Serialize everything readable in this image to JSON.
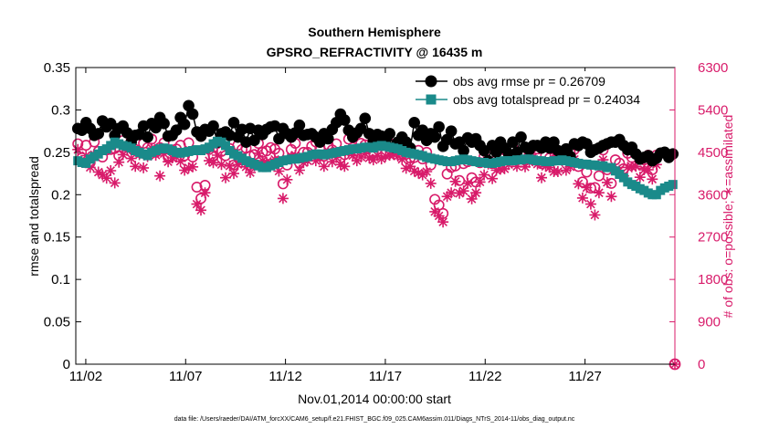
{
  "chart_data": {
    "type": "line",
    "title": "Southern Hemisphere",
    "subtitle": "GPSRO_REFRACTIVITY @ 16435 m",
    "xlabel": "Nov.01,2014 00:00:00 start",
    "ylabel": "rmse and totalspread",
    "ylabel_right": "# of obs: o=possible; ∗=assimilated",
    "footer": "data file: /Users/raeder/DAI/ATM_forcXX/CAM6_setup/f.e21.FHIST_BGC.f09_025.CAM6assim.011/Diags_NTrS_2014-11/obs_diag_output.nc",
    "xlim": [
      0.5,
      30.5
    ],
    "x_ticks": [
      1,
      6,
      11,
      16,
      21,
      26
    ],
    "x_tick_labels": [
      "11/02",
      "11/07",
      "11/12",
      "11/17",
      "11/22",
      "11/27"
    ],
    "ylim": [
      0,
      0.35
    ],
    "y_ticks": [
      "0",
      "0.05",
      "0.1",
      "0.15",
      "0.2",
      "0.25",
      "0.3",
      "0.35"
    ],
    "ylim_right": [
      0,
      6300
    ],
    "y_ticks_right": [
      "0",
      "900",
      "1800",
      "2700",
      "3600",
      "4500",
      "5400",
      "6300"
    ],
    "legend_position": "top-right",
    "colors": {
      "rmse": "#000000",
      "spread": "#1a8a8a",
      "obs": "#d81b6a"
    },
    "series": [
      {
        "name": "obs avg rmse",
        "legend": "obs avg rmse pr = 0.26709",
        "values": [
          0.278,
          0.276,
          0.285,
          0.278,
          0.27,
          0.272,
          0.287,
          0.28,
          0.284,
          0.27,
          0.278,
          0.281,
          0.273,
          0.262,
          0.27,
          0.271,
          0.281,
          0.268,
          0.284,
          0.279,
          0.291,
          0.284,
          0.269,
          0.27,
          0.276,
          0.291,
          0.283,
          0.305,
          0.295,
          0.274,
          0.269,
          0.277,
          0.275,
          0.281,
          0.262,
          0.272,
          0.274,
          0.27,
          0.285,
          0.268,
          0.277,
          0.262,
          0.278,
          0.264,
          0.276,
          0.271,
          0.277,
          0.28,
          0.281,
          0.266,
          0.278,
          0.272,
          0.268,
          0.273,
          0.282,
          0.27,
          0.271,
          0.272,
          0.268,
          0.262,
          0.272,
          0.266,
          0.277,
          0.285,
          0.295,
          0.288,
          0.276,
          0.268,
          0.273,
          0.278,
          0.29,
          0.272,
          0.263,
          0.271,
          0.269,
          0.265,
          0.272,
          0.256,
          0.262,
          0.268,
          0.262,
          0.255,
          0.285,
          0.27,
          0.276,
          0.264,
          0.272,
          0.268,
          0.28,
          0.257,
          0.265,
          0.275,
          0.26,
          0.262,
          0.252,
          0.267,
          0.262,
          0.266,
          0.258,
          0.252,
          0.24,
          0.258,
          0.25,
          0.262,
          0.255,
          0.248,
          0.262,
          0.25,
          0.268,
          0.256,
          0.253,
          0.258,
          0.258,
          0.255,
          0.262,
          0.255,
          0.262,
          0.252,
          0.246,
          0.254,
          0.245,
          0.26,
          0.258,
          0.262,
          0.26,
          0.25,
          0.253,
          0.255,
          0.258,
          0.26,
          0.262,
          0.262,
          0.265,
          0.258,
          0.253,
          0.256,
          0.248,
          0.242,
          0.244,
          0.246,
          0.24,
          0.243,
          0.249,
          0.25,
          0.244,
          0.248
        ]
      },
      {
        "name": "obs avg totalspread",
        "legend": "obs avg totalspread pr = 0.24034",
        "values": [
          0.24,
          0.238,
          0.237,
          0.242,
          0.245,
          0.248,
          0.252,
          0.254,
          0.258,
          0.262,
          0.26,
          0.258,
          0.257,
          0.255,
          0.252,
          0.25,
          0.248,
          0.246,
          0.25,
          0.252,
          0.254,
          0.255,
          0.254,
          0.252,
          0.25,
          0.249,
          0.25,
          0.251,
          0.252,
          0.253,
          0.252,
          0.254,
          0.256,
          0.26,
          0.263,
          0.262,
          0.258,
          0.252,
          0.248,
          0.246,
          0.243,
          0.24,
          0.238,
          0.236,
          0.234,
          0.232,
          0.232,
          0.234,
          0.236,
          0.238,
          0.24,
          0.241,
          0.242,
          0.242,
          0.243,
          0.244,
          0.245,
          0.247,
          0.248,
          0.248,
          0.247,
          0.248,
          0.249,
          0.25,
          0.251,
          0.252,
          0.253,
          0.254,
          0.254,
          0.255,
          0.256,
          0.256,
          0.255,
          0.257,
          0.258,
          0.257,
          0.256,
          0.255,
          0.254,
          0.252,
          0.25,
          0.249,
          0.248,
          0.247,
          0.246,
          0.244,
          0.243,
          0.242,
          0.241,
          0.24,
          0.239,
          0.239,
          0.24,
          0.241,
          0.242,
          0.241,
          0.24,
          0.239,
          0.238,
          0.238,
          0.237,
          0.237,
          0.238,
          0.239,
          0.24,
          0.24,
          0.24,
          0.241,
          0.241,
          0.242,
          0.242,
          0.241,
          0.24,
          0.24,
          0.239,
          0.239,
          0.24,
          0.24,
          0.241,
          0.24,
          0.239,
          0.238,
          0.237,
          0.236,
          0.236,
          0.235,
          0.235,
          0.234,
          0.234,
          0.232,
          0.232,
          0.228,
          0.224,
          0.22,
          0.215,
          0.212,
          0.21,
          0.207,
          0.205,
          0.202,
          0.2,
          0.2,
          0.205,
          0.208,
          0.21,
          0.212
        ]
      },
      {
        "name": "obs possible",
        "values": [
          4680,
          4380,
          4650,
          4280,
          4720,
          4520,
          4400,
          4550,
          4560,
          4580,
          4430,
          4750,
          4620,
          4750,
          4560,
          4500,
          4690,
          4600,
          4780,
          4500,
          4600,
          4700,
          4400,
          4540,
          4570,
          4650,
          4430,
          4700,
          4400,
          3760,
          3520,
          3800,
          4560,
          4430,
          4690,
          4520,
          4430,
          4580,
          4230,
          4650,
          4560,
          4590,
          4420,
          4450,
          4690,
          4500,
          4530,
          4600,
          4570,
          4480,
          3830,
          4230,
          4560,
          4690,
          4280,
          4500,
          4500,
          4630,
          4720,
          4600,
          4420,
          4660,
          4550,
          4680,
          4380,
          4450,
          4780,
          4600,
          4540,
          4690,
          4660,
          4600,
          4500,
          4780,
          4640,
          4480,
          4690,
          4560,
          4660,
          4570,
          4460,
          4380,
          4390,
          4540,
          4360,
          4500,
          4230,
          3500,
          3380,
          3200,
          4040,
          4180,
          4210,
          3900,
          4260,
          4300,
          3960,
          3870,
          4280,
          4410,
          4420,
          4260,
          4510,
          4390,
          4550,
          4460,
          4600,
          4420,
          4480,
          4340,
          4450,
          4620,
          4570,
          4260,
          4430,
          4380,
          4330,
          4480,
          4460,
          4340,
          4500,
          4560,
          4200,
          3870,
          4080,
          3740,
          3750,
          4000,
          4550,
          4130,
          3840,
          4340,
          4270,
          4150,
          4480,
          4390,
          4460,
          4260,
          4340,
          4440,
          4130,
          4440
        ]
      },
      {
        "name": "obs assimilated",
        "values": [
          4560,
          4290,
          4430,
          4180,
          4450,
          4080,
          4020,
          3950,
          4110,
          3850,
          4290,
          4450,
          4540,
          4370,
          4200,
          4450,
          4170,
          4410,
          4590,
          4440,
          4000,
          4470,
          4300,
          4380,
          4400,
          4310,
          4120,
          4170,
          4190,
          3400,
          3270,
          3640,
          4320,
          4280,
          4440,
          4240,
          3960,
          4210,
          4050,
          4240,
          4300,
          4190,
          4070,
          4210,
          4480,
          4320,
          4290,
          4280,
          4350,
          4100,
          3520,
          3920,
          4400,
          4440,
          4120,
          4280,
          4320,
          4450,
          4320,
          4380,
          4200,
          4480,
          4300,
          4390,
          4240,
          4200,
          4500,
          4430,
          4320,
          4400,
          4470,
          4380,
          4340,
          4430,
          4360,
          4420,
          4440,
          4450,
          4420,
          4350,
          4160,
          4200,
          4100,
          4060,
          4020,
          4090,
          3840,
          3240,
          3150,
          3020,
          3560,
          3640,
          3880,
          3630,
          3680,
          3840,
          3510,
          3640,
          3870,
          4020,
          4250,
          3940,
          4120,
          4140,
          4150,
          4240,
          4420,
          4200,
          4360,
          4190,
          4290,
          4400,
          4250,
          3960,
          4200,
          4180,
          4090,
          4090,
          4320,
          4120,
          4190,
          4350,
          3830,
          3530,
          3750,
          3400,
          3170,
          3640,
          4340,
          3860,
          3560,
          4120,
          4120,
          4000,
          4180,
          4190,
          4200,
          3970,
          4130,
          4130,
          3930,
          4240
        ]
      }
    ]
  }
}
